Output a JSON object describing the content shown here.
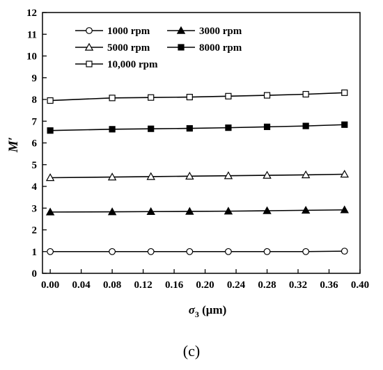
{
  "caption": "(c)",
  "chart_data": {
    "type": "line",
    "xlabel_var": "σ",
    "xlabel_sub": "3",
    "xlabel_unit": " (μm)",
    "ylabel": "M′",
    "xlim": [
      -0.01,
      0.4
    ],
    "ylim": [
      0,
      12
    ],
    "xticks": [
      "0.00",
      "0.04",
      "0.08",
      "0.12",
      "0.16",
      "0.20",
      "0.24",
      "0.28",
      "0.32",
      "0.36",
      "0.40"
    ],
    "yticks": [
      "0",
      "1",
      "2",
      "3",
      "4",
      "5",
      "6",
      "7",
      "8",
      "9",
      "10",
      "11",
      "12"
    ],
    "x": [
      0,
      0.08,
      0.13,
      0.18,
      0.23,
      0.28,
      0.33,
      0.38
    ],
    "legend_position": "top-left",
    "grid": false,
    "series": [
      {
        "name": "1000 rpm",
        "marker": "circle-open",
        "values": [
          1.0,
          1.0,
          1.0,
          1.0,
          1.0,
          1.0,
          1.0,
          1.02
        ]
      },
      {
        "name": "3000 rpm",
        "marker": "triangle-filled",
        "values": [
          2.82,
          2.83,
          2.84,
          2.85,
          2.86,
          2.88,
          2.9,
          2.92
        ]
      },
      {
        "name": "5000 rpm",
        "marker": "triangle-open",
        "values": [
          4.4,
          4.43,
          4.45,
          4.47,
          4.49,
          4.51,
          4.53,
          4.56
        ]
      },
      {
        "name": "8000 rpm",
        "marker": "square-filled",
        "values": [
          6.57,
          6.63,
          6.65,
          6.67,
          6.7,
          6.74,
          6.78,
          6.84
        ]
      },
      {
        "name": "10,000 rpm",
        "marker": "square-open",
        "values": [
          7.95,
          8.07,
          8.09,
          8.11,
          8.15,
          8.19,
          8.24,
          8.31
        ]
      }
    ]
  }
}
